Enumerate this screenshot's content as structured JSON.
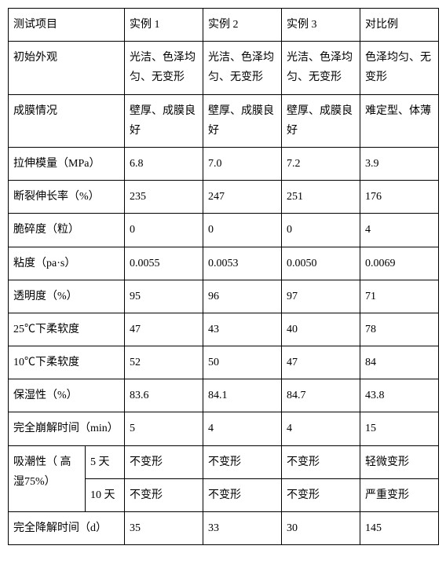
{
  "header": {
    "c0": "测试项目",
    "c1": "实例 1",
    "c2": "实例 2",
    "c3": "实例 3",
    "c4": "对比例"
  },
  "rows": {
    "appearance": {
      "label": "初始外观",
      "v1": "光洁、色泽均匀、无变形",
      "v2": "光洁、色泽均匀、无变形",
      "v3": "光洁、色泽均匀、无变形",
      "v4": "色泽均匀、无变形"
    },
    "film": {
      "label": "成膜情况",
      "v1": "壁厚、成膜良好",
      "v2": "壁厚、成膜良好",
      "v3": "壁厚、成膜良好",
      "v4": "难定型、体薄"
    },
    "tensile": {
      "label": "拉伸模量（MPa）",
      "v1": "6.8",
      "v2": "7.0",
      "v3": "7.2",
      "v4": "3.9"
    },
    "elongation": {
      "label": "断裂伸长率（%）",
      "v1": "235",
      "v2": "247",
      "v3": "251",
      "v4": "176"
    },
    "brittle": {
      "label": "脆碎度（粒）",
      "v1": "0",
      "v2": "0",
      "v3": "0",
      "v4": "4"
    },
    "viscosity": {
      "label": "粘度（pa·s）",
      "v1": "0.0055",
      "v2": "0.0053",
      "v3": "0.0050",
      "v4": "0.0069"
    },
    "transparency": {
      "label": "透明度（%）",
      "v1": "95",
      "v2": "96",
      "v3": "97",
      "v4": "71"
    },
    "soft25": {
      "label": "25℃下柔软度",
      "v1": "47",
      "v2": "43",
      "v3": "40",
      "v4": "78"
    },
    "soft10": {
      "label": "10℃下柔软度",
      "v1": "52",
      "v2": "50",
      "v3": "47",
      "v4": "84"
    },
    "moisture": {
      "label": "保湿性（%）",
      "v1": "83.6",
      "v2": "84.1",
      "v3": "84.7",
      "v4": "43.8"
    },
    "disint": {
      "label": "完全崩解时间（min）",
      "v1": "5",
      "v2": "4",
      "v3": "4",
      "v4": "15"
    },
    "hygro": {
      "label": "吸潮性（ 高 湿75%）",
      "d5": {
        "sub": "5 天",
        "v1": "不变形",
        "v2": "不变形",
        "v3": "不变形",
        "v4": "轻微变形"
      },
      "d10": {
        "sub": "10 天",
        "v1": "不变形",
        "v2": "不变形",
        "v3": "不变形",
        "v4": "严重变形"
      }
    },
    "degrade": {
      "label": "完全降解时间（d）",
      "v1": "35",
      "v2": "33",
      "v3": "30",
      "v4": "145"
    }
  }
}
